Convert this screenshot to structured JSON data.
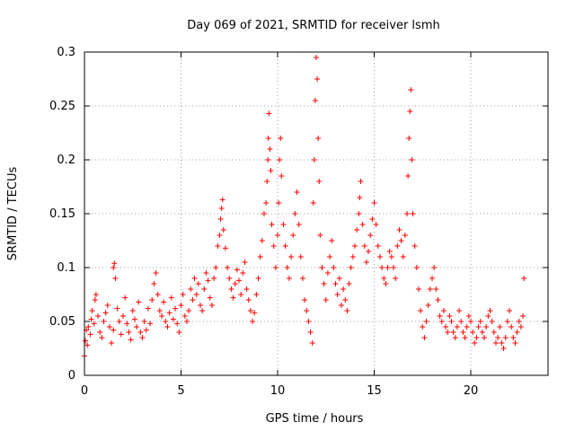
{
  "chart_data": {
    "type": "scatter",
    "title": "Day 069 of 2021, SRMTID for receiver lsmh",
    "xlabel": "GPS time / hours",
    "ylabel": "SRMTID / TECUs",
    "xlim": [
      0,
      24
    ],
    "ylim": [
      0,
      0.3
    ],
    "x_ticks": [
      0,
      5,
      10,
      15,
      20
    ],
    "x_tick_labels": [
      "0",
      "5",
      "10",
      "15",
      "20"
    ],
    "y_ticks": [
      0,
      0.05,
      0.1,
      0.15,
      0.2,
      0.25,
      0.3
    ],
    "y_tick_labels": [
      "0",
      "0.05",
      "0.1",
      "0.15",
      "0.2",
      "0.25",
      "0.3"
    ],
    "grid": true,
    "marker": "+",
    "color": "#ff0000",
    "series": [
      {
        "name": "SRMTID",
        "points": [
          [
            0.0,
            0.018
          ],
          [
            0.05,
            0.032
          ],
          [
            0.1,
            0.042
          ],
          [
            0.15,
            0.028
          ],
          [
            0.2,
            0.045
          ],
          [
            0.3,
            0.038
          ],
          [
            0.35,
            0.052
          ],
          [
            0.4,
            0.06
          ],
          [
            0.5,
            0.048
          ],
          [
            0.55,
            0.07
          ],
          [
            0.6,
            0.075
          ],
          [
            0.7,
            0.055
          ],
          [
            0.8,
            0.04
          ],
          [
            0.9,
            0.035
          ],
          [
            1.0,
            0.05
          ],
          [
            1.1,
            0.058
          ],
          [
            1.2,
            0.065
          ],
          [
            1.3,
            0.045
          ],
          [
            1.4,
            0.03
          ],
          [
            1.5,
            0.042
          ],
          [
            1.5,
            0.1
          ],
          [
            1.55,
            0.104
          ],
          [
            1.6,
            0.09
          ],
          [
            1.7,
            0.062
          ],
          [
            1.8,
            0.05
          ],
          [
            1.9,
            0.038
          ],
          [
            2.0,
            0.055
          ],
          [
            2.1,
            0.072
          ],
          [
            2.2,
            0.048
          ],
          [
            2.3,
            0.04
          ],
          [
            2.4,
            0.033
          ],
          [
            2.5,
            0.06
          ],
          [
            2.6,
            0.052
          ],
          [
            2.7,
            0.045
          ],
          [
            2.8,
            0.068
          ],
          [
            2.9,
            0.04
          ],
          [
            3.0,
            0.035
          ],
          [
            3.1,
            0.05
          ],
          [
            3.2,
            0.042
          ],
          [
            3.3,
            0.062
          ],
          [
            3.4,
            0.048
          ],
          [
            3.5,
            0.07
          ],
          [
            3.6,
            0.085
          ],
          [
            3.7,
            0.095
          ],
          [
            3.8,
            0.075
          ],
          [
            3.9,
            0.06
          ],
          [
            4.0,
            0.055
          ],
          [
            4.1,
            0.068
          ],
          [
            4.2,
            0.05
          ],
          [
            4.3,
            0.045
          ],
          [
            4.4,
            0.058
          ],
          [
            4.5,
            0.072
          ],
          [
            4.6,
            0.052
          ],
          [
            4.7,
            0.062
          ],
          [
            4.8,
            0.048
          ],
          [
            4.9,
            0.04
          ],
          [
            5.0,
            0.065
          ],
          [
            5.1,
            0.075
          ],
          [
            5.2,
            0.055
          ],
          [
            5.3,
            0.05
          ],
          [
            5.4,
            0.06
          ],
          [
            5.5,
            0.08
          ],
          [
            5.6,
            0.07
          ],
          [
            5.7,
            0.09
          ],
          [
            5.8,
            0.075
          ],
          [
            5.9,
            0.085
          ],
          [
            6.0,
            0.065
          ],
          [
            6.1,
            0.06
          ],
          [
            6.2,
            0.08
          ],
          [
            6.3,
            0.095
          ],
          [
            6.4,
            0.088
          ],
          [
            6.5,
            0.072
          ],
          [
            6.6,
            0.065
          ],
          [
            6.7,
            0.09
          ],
          [
            6.8,
            0.1
          ],
          [
            6.9,
            0.12
          ],
          [
            7.0,
            0.13
          ],
          [
            7.05,
            0.145
          ],
          [
            7.1,
            0.155
          ],
          [
            7.15,
            0.163
          ],
          [
            7.2,
            0.135
          ],
          [
            7.3,
            0.118
          ],
          [
            7.4,
            0.1
          ],
          [
            7.5,
            0.09
          ],
          [
            7.6,
            0.08
          ],
          [
            7.7,
            0.072
          ],
          [
            7.8,
            0.085
          ],
          [
            7.9,
            0.098
          ],
          [
            8.0,
            0.088
          ],
          [
            8.1,
            0.075
          ],
          [
            8.2,
            0.095
          ],
          [
            8.3,
            0.105
          ],
          [
            8.4,
            0.08
          ],
          [
            8.5,
            0.07
          ],
          [
            8.6,
            0.06
          ],
          [
            8.7,
            0.05
          ],
          [
            8.8,
            0.058
          ],
          [
            8.9,
            0.075
          ],
          [
            9.0,
            0.09
          ],
          [
            9.1,
            0.11
          ],
          [
            9.2,
            0.125
          ],
          [
            9.3,
            0.15
          ],
          [
            9.4,
            0.16
          ],
          [
            9.45,
            0.18
          ],
          [
            9.5,
            0.2
          ],
          [
            9.52,
            0.22
          ],
          [
            9.55,
            0.243
          ],
          [
            9.6,
            0.21
          ],
          [
            9.65,
            0.19
          ],
          [
            9.7,
            0.14
          ],
          [
            9.8,
            0.12
          ],
          [
            9.9,
            0.1
          ],
          [
            10.0,
            0.13
          ],
          [
            10.05,
            0.16
          ],
          [
            10.1,
            0.2
          ],
          [
            10.15,
            0.22
          ],
          [
            10.2,
            0.185
          ],
          [
            10.3,
            0.14
          ],
          [
            10.4,
            0.12
          ],
          [
            10.5,
            0.1
          ],
          [
            10.6,
            0.09
          ],
          [
            10.7,
            0.11
          ],
          [
            10.8,
            0.13
          ],
          [
            10.9,
            0.15
          ],
          [
            11.0,
            0.17
          ],
          [
            11.1,
            0.14
          ],
          [
            11.2,
            0.11
          ],
          [
            11.3,
            0.09
          ],
          [
            11.4,
            0.07
          ],
          [
            11.5,
            0.06
          ],
          [
            11.6,
            0.05
          ],
          [
            11.7,
            0.04
          ],
          [
            11.8,
            0.03
          ],
          [
            11.85,
            0.16
          ],
          [
            11.9,
            0.2
          ],
          [
            11.95,
            0.255
          ],
          [
            12.0,
            0.295
          ],
          [
            12.05,
            0.275
          ],
          [
            12.1,
            0.22
          ],
          [
            12.15,
            0.18
          ],
          [
            12.2,
            0.13
          ],
          [
            12.3,
            0.1
          ],
          [
            12.4,
            0.085
          ],
          [
            12.5,
            0.07
          ],
          [
            12.6,
            0.095
          ],
          [
            12.7,
            0.11
          ],
          [
            12.8,
            0.125
          ],
          [
            12.9,
            0.1
          ],
          [
            13.0,
            0.085
          ],
          [
            13.1,
            0.075
          ],
          [
            13.2,
            0.09
          ],
          [
            13.3,
            0.065
          ],
          [
            13.4,
            0.08
          ],
          [
            13.5,
            0.07
          ],
          [
            13.6,
            0.06
          ],
          [
            13.7,
            0.085
          ],
          [
            13.8,
            0.1
          ],
          [
            13.9,
            0.11
          ],
          [
            14.0,
            0.12
          ],
          [
            14.1,
            0.135
          ],
          [
            14.2,
            0.15
          ],
          [
            14.25,
            0.165
          ],
          [
            14.3,
            0.18
          ],
          [
            14.4,
            0.14
          ],
          [
            14.5,
            0.12
          ],
          [
            14.6,
            0.105
          ],
          [
            14.7,
            0.115
          ],
          [
            14.8,
            0.13
          ],
          [
            14.9,
            0.145
          ],
          [
            15.0,
            0.16
          ],
          [
            15.1,
            0.14
          ],
          [
            15.2,
            0.12
          ],
          [
            15.3,
            0.11
          ],
          [
            15.4,
            0.1
          ],
          [
            15.5,
            0.09
          ],
          [
            15.6,
            0.085
          ],
          [
            15.7,
            0.1
          ],
          [
            15.8,
            0.115
          ],
          [
            15.9,
            0.11
          ],
          [
            16.0,
            0.1
          ],
          [
            16.1,
            0.09
          ],
          [
            16.2,
            0.12
          ],
          [
            16.3,
            0.135
          ],
          [
            16.4,
            0.125
          ],
          [
            16.5,
            0.11
          ],
          [
            16.6,
            0.13
          ],
          [
            16.7,
            0.15
          ],
          [
            16.75,
            0.185
          ],
          [
            16.8,
            0.22
          ],
          [
            16.85,
            0.245
          ],
          [
            16.9,
            0.265
          ],
          [
            16.95,
            0.2
          ],
          [
            17.0,
            0.15
          ],
          [
            17.1,
            0.12
          ],
          [
            17.2,
            0.1
          ],
          [
            17.3,
            0.08
          ],
          [
            17.4,
            0.06
          ],
          [
            17.5,
            0.045
          ],
          [
            17.6,
            0.035
          ],
          [
            17.7,
            0.05
          ],
          [
            17.8,
            0.065
          ],
          [
            17.9,
            0.08
          ],
          [
            18.0,
            0.09
          ],
          [
            18.1,
            0.1
          ],
          [
            18.2,
            0.08
          ],
          [
            18.3,
            0.07
          ],
          [
            18.4,
            0.055
          ],
          [
            18.5,
            0.05
          ],
          [
            18.6,
            0.06
          ],
          [
            18.7,
            0.045
          ],
          [
            18.8,
            0.04
          ],
          [
            18.9,
            0.055
          ],
          [
            19.0,
            0.05
          ],
          [
            19.1,
            0.04
          ],
          [
            19.2,
            0.035
          ],
          [
            19.3,
            0.045
          ],
          [
            19.4,
            0.06
          ],
          [
            19.5,
            0.05
          ],
          [
            19.6,
            0.04
          ],
          [
            19.7,
            0.035
          ],
          [
            19.8,
            0.045
          ],
          [
            19.9,
            0.055
          ],
          [
            20.0,
            0.05
          ],
          [
            20.1,
            0.04
          ],
          [
            20.2,
            0.03
          ],
          [
            20.3,
            0.035
          ],
          [
            20.4,
            0.045
          ],
          [
            20.5,
            0.05
          ],
          [
            20.6,
            0.04
          ],
          [
            20.7,
            0.035
          ],
          [
            20.8,
            0.045
          ],
          [
            20.9,
            0.055
          ],
          [
            21.0,
            0.06
          ],
          [
            21.1,
            0.05
          ],
          [
            21.2,
            0.04
          ],
          [
            21.3,
            0.03
          ],
          [
            21.4,
            0.035
          ],
          [
            21.5,
            0.045
          ],
          [
            21.6,
            0.03
          ],
          [
            21.7,
            0.025
          ],
          [
            21.8,
            0.035
          ],
          [
            21.9,
            0.05
          ],
          [
            22.0,
            0.06
          ],
          [
            22.1,
            0.045
          ],
          [
            22.2,
            0.035
          ],
          [
            22.3,
            0.03
          ],
          [
            22.4,
            0.04
          ],
          [
            22.5,
            0.05
          ],
          [
            22.6,
            0.045
          ],
          [
            22.7,
            0.055
          ],
          [
            22.75,
            0.09
          ]
        ]
      }
    ]
  }
}
